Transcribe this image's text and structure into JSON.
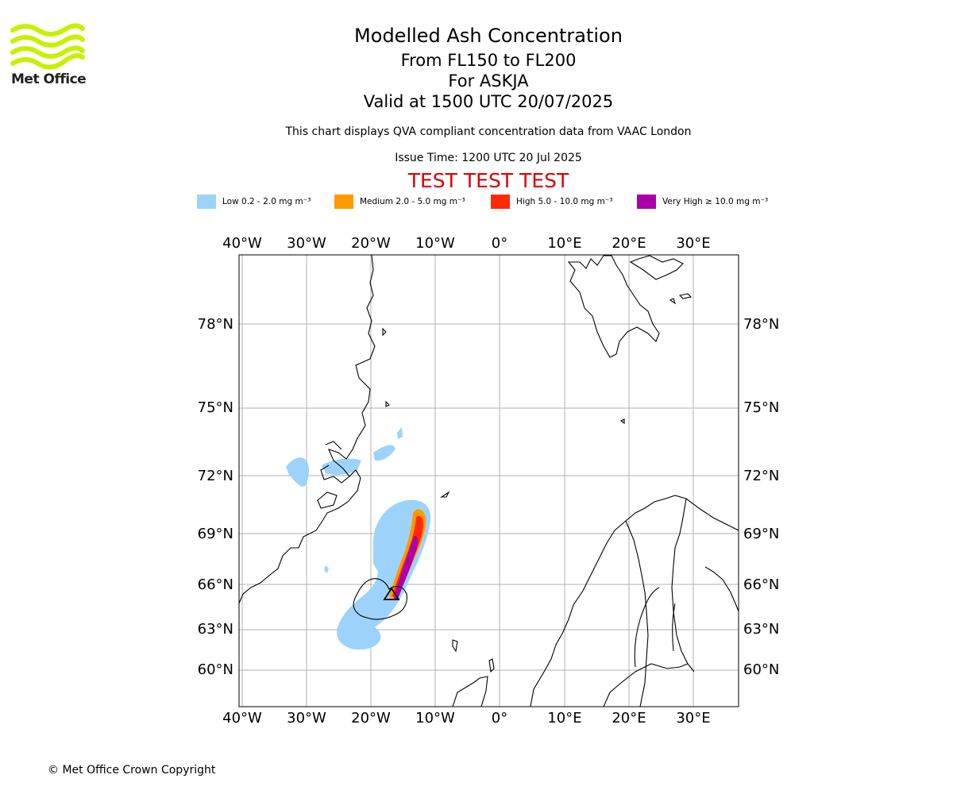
{
  "branding": {
    "logo_text": "Met Office",
    "logo_color": "#c8f000"
  },
  "header": {
    "title": "Modelled Ash Concentration",
    "levels": "From FL150 to FL200",
    "volcano": "For ASKJA",
    "valid": "Valid at 1500 UTC 20/07/2025",
    "subtitle": "This chart displays QVA compliant concentration data from VAAC London",
    "issue_time": "Issue Time: 1200 UTC 20 Jul 2025",
    "test_banner": "TEST TEST TEST",
    "test_color": "#dd0000"
  },
  "legend": [
    {
      "label": "Low 0.2 - 2.0 mg m⁻³",
      "color": "#9dd3fb"
    },
    {
      "label": "Medium 2.0 - 5.0 mg m⁻³",
      "color": "#ff9900"
    },
    {
      "label": "High 5.0 - 10.0 mg m⁻³",
      "color": "#ff2a00"
    },
    {
      "label": "Very High  ≥  10.0 mg m⁻³",
      "color": "#aa00aa"
    }
  ],
  "map": {
    "lon_labels": [
      "40°W",
      "30°W",
      "20°W",
      "10°W",
      "0°",
      "10°E",
      "20°E",
      "30°E"
    ],
    "lat_labels": [
      "78°N",
      "75°N",
      "72°N",
      "69°N",
      "66°N",
      "63°N",
      "60°N"
    ],
    "grid_color": "#b0b0b0"
  },
  "footer": {
    "copyright": "© Met Office Crown Copyright"
  }
}
